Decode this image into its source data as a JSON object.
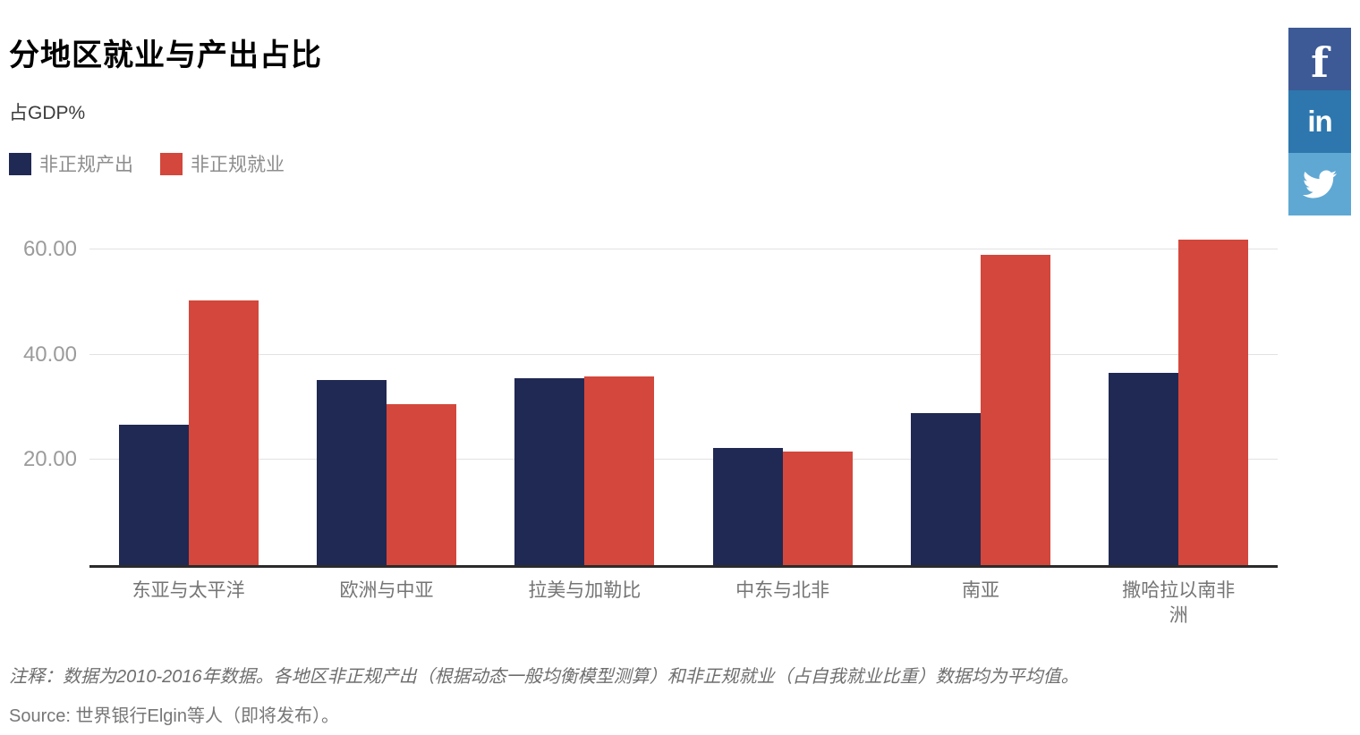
{
  "chart_data": {
    "type": "bar",
    "title": "分地区就业与产出占比",
    "ylabel": "占GDP%",
    "xlabel": "",
    "categories": [
      "东亚与太平洋",
      "欧洲与中亚",
      "拉美与加勒比",
      "中东与北非",
      "南亚",
      "撒哈拉以南非洲"
    ],
    "series": [
      {
        "name": "非正规产出",
        "color": "#202953",
        "values": [
          26.7,
          35.2,
          35.5,
          22.3,
          29.0,
          36.5
        ]
      },
      {
        "name": "非正规就业",
        "color": "#d4473c",
        "values": [
          50.3,
          30.6,
          35.9,
          21.6,
          59.0,
          62.0
        ]
      }
    ],
    "yticks": [
      20,
      40,
      60
    ],
    "ytick_labels": [
      "20.00",
      "40.00",
      "60.00"
    ],
    "ylim": [
      0,
      62.6
    ],
    "grid": true,
    "legend_position": "top-left"
  },
  "social": [
    {
      "name": "facebook",
      "glyph": "f",
      "color": "#3d5a96"
    },
    {
      "name": "linkedin",
      "glyph": "in",
      "color": "#2d77ae"
    },
    {
      "name": "twitter",
      "glyph": "",
      "color": "#5fa8d4"
    }
  ],
  "footer": {
    "note": "注释：数据为2010-2016年数据。各地区非正规产出（根据动态一般均衡模型测算）和非正规就业（占自我就业比重）数据均为平均值。",
    "source": "Source: 世界银行Elgin等人（即将发布）。"
  }
}
